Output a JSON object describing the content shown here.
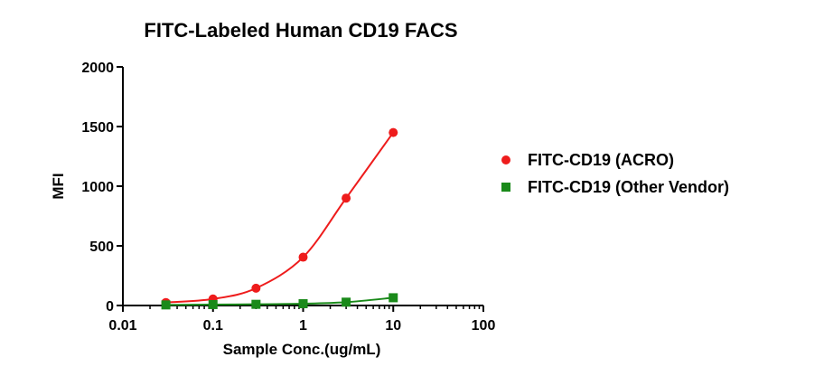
{
  "chart_data": {
    "type": "scatter",
    "title": "FITC-Labeled Human CD19 FACS",
    "xlabel": "Sample Conc.(ug/mL)",
    "ylabel": "MFI",
    "xscale": "log",
    "xlim": [
      0.01,
      100
    ],
    "ylim": [
      0,
      2000
    ],
    "xticks": [
      0.01,
      0.1,
      1,
      10,
      100
    ],
    "xtick_labels": [
      "0.01",
      "0.1",
      "1",
      "10",
      "100"
    ],
    "yticks": [
      0,
      500,
      1000,
      1500,
      2000
    ],
    "ytick_labels": [
      "0",
      "500",
      "1000",
      "1500",
      "2000"
    ],
    "grid": false,
    "legend_position": "right",
    "series": [
      {
        "name": "FITC-CD19 (ACRO)",
        "marker": "circle",
        "color": "#ee1c1c",
        "x": [
          0.03,
          0.1,
          0.3,
          1,
          3,
          10
        ],
        "y": [
          25,
          55,
          145,
          405,
          900,
          1450
        ]
      },
      {
        "name": "FITC-CD19 (Other Vendor)",
        "marker": "square",
        "color": "#1a8a1a",
        "x": [
          0.03,
          0.1,
          0.3,
          1,
          3,
          10
        ],
        "y": [
          5,
          8,
          10,
          15,
          28,
          65
        ]
      }
    ]
  }
}
